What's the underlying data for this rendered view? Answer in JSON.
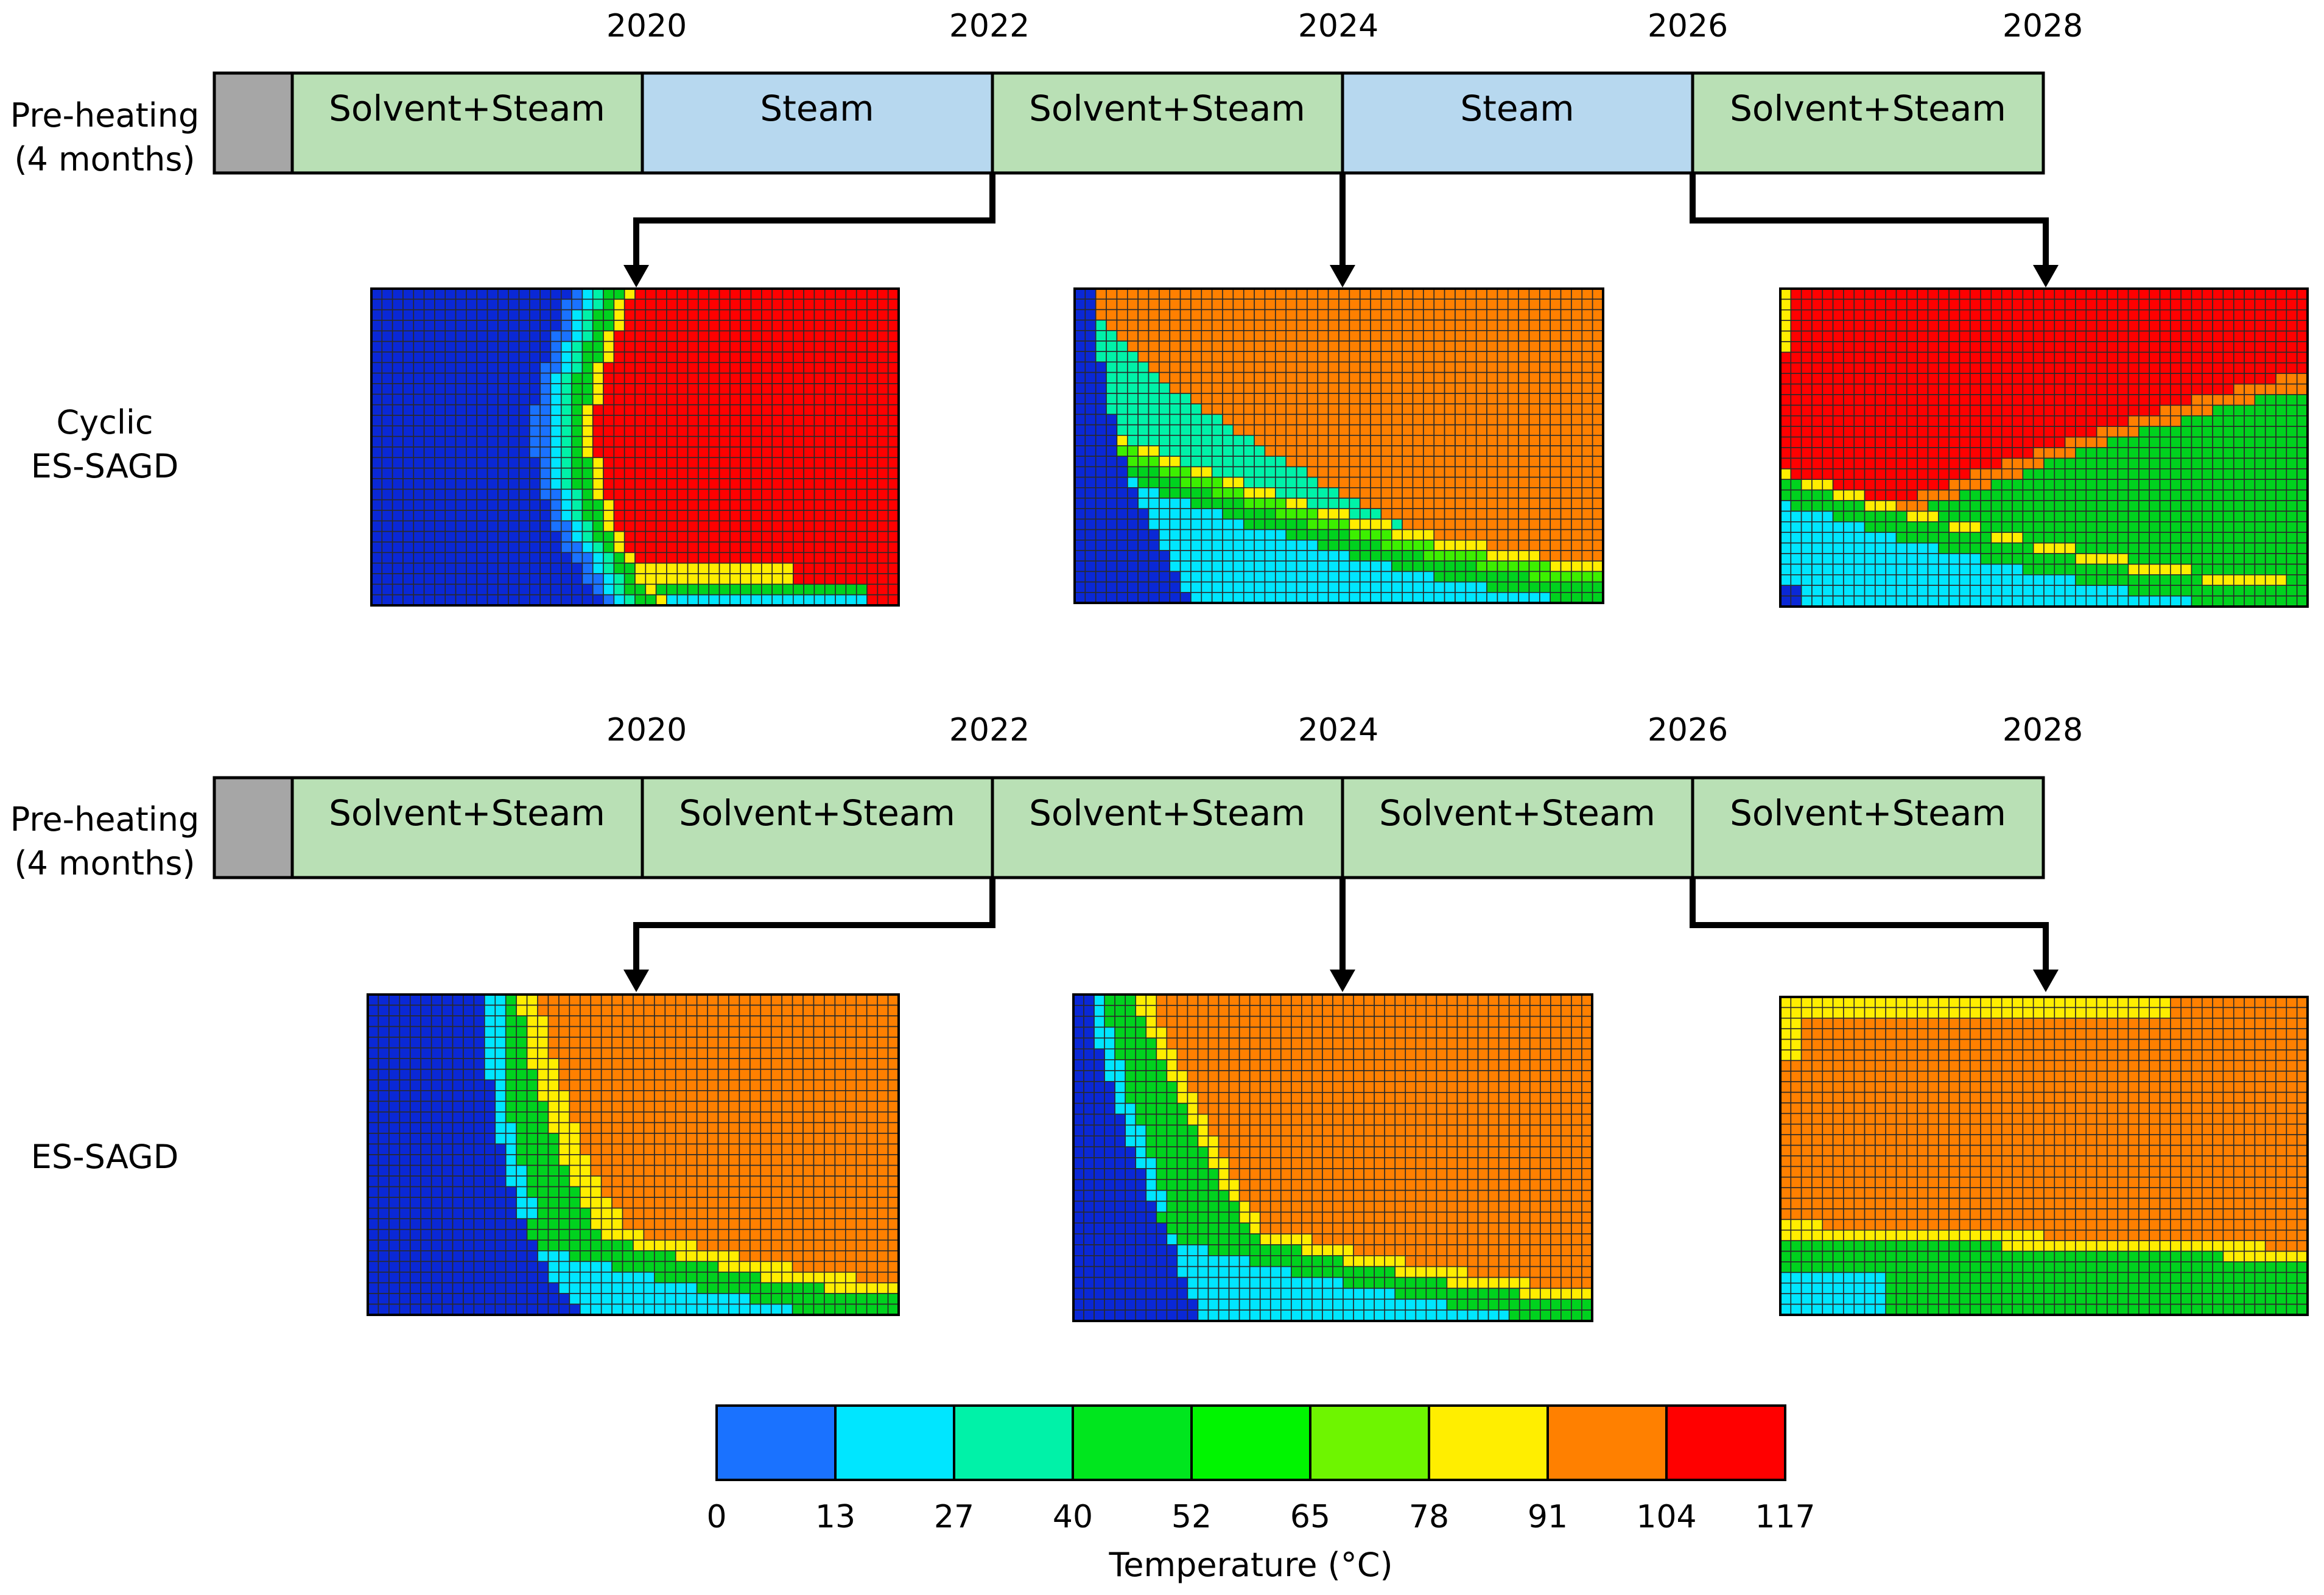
{
  "colors": {
    "solvent_steam": "#b9e0b5",
    "steam": "#b7d8ef",
    "preheat": "#a6a6a6",
    "outline": "#000000",
    "cell_grid": "#2a2a2a"
  },
  "timelines": [
    {
      "id": "cyclic",
      "years": [
        "2020",
        "2022",
        "2024",
        "2026",
        "2028"
      ],
      "preheat_label_line1": "Pre-heating",
      "preheat_label_line2": "(4 months)",
      "phases": [
        {
          "label": "Solvent+Steam",
          "kind": "solvent_steam"
        },
        {
          "label": "Steam",
          "kind": "steam"
        },
        {
          "label": "Solvent+Steam",
          "kind": "solvent_steam"
        },
        {
          "label": "Steam",
          "kind": "steam"
        },
        {
          "label": "Solvent+Steam",
          "kind": "solvent_steam"
        }
      ],
      "row_label_line1": "Cyclic",
      "row_label_line2": "ES-SAGD"
    },
    {
      "id": "essagd",
      "years": [
        "2020",
        "2022",
        "2024",
        "2026",
        "2028"
      ],
      "preheat_label_line1": "Pre-heating",
      "preheat_label_line2": "(4 months)",
      "phases": [
        {
          "label": "Solvent+Steam",
          "kind": "solvent_steam"
        },
        {
          "label": "Solvent+Steam",
          "kind": "solvent_steam"
        },
        {
          "label": "Solvent+Steam",
          "kind": "solvent_steam"
        },
        {
          "label": "Solvent+Steam",
          "kind": "solvent_steam"
        },
        {
          "label": "Solvent+Steam",
          "kind": "solvent_steam"
        }
      ],
      "row_label_line1": "",
      "row_label_line2": "ES-SAGD"
    }
  ],
  "temperature_maps": [
    {
      "row": "cyclic",
      "snapshot": "2022",
      "dominant": "red"
    },
    {
      "row": "cyclic",
      "snapshot": "2024",
      "dominant": "orange"
    },
    {
      "row": "cyclic",
      "snapshot": "2026",
      "dominant": "red"
    },
    {
      "row": "essagd",
      "snapshot": "2022",
      "dominant": "orange"
    },
    {
      "row": "essagd",
      "snapshot": "2024",
      "dominant": "orange"
    },
    {
      "row": "essagd",
      "snapshot": "2026",
      "dominant": "orange"
    }
  ],
  "legend": {
    "title": "Temperature (°C)",
    "ticks": [
      "0",
      "13",
      "27",
      "40",
      "52",
      "65",
      "78",
      "91",
      "104",
      "117"
    ],
    "colors": [
      "#1a72ff",
      "#00e6ff",
      "#00f2a8",
      "#00e61e",
      "#00f500",
      "#6ef500",
      "#ffee00",
      "#ff8000",
      "#ff0000"
    ]
  }
}
